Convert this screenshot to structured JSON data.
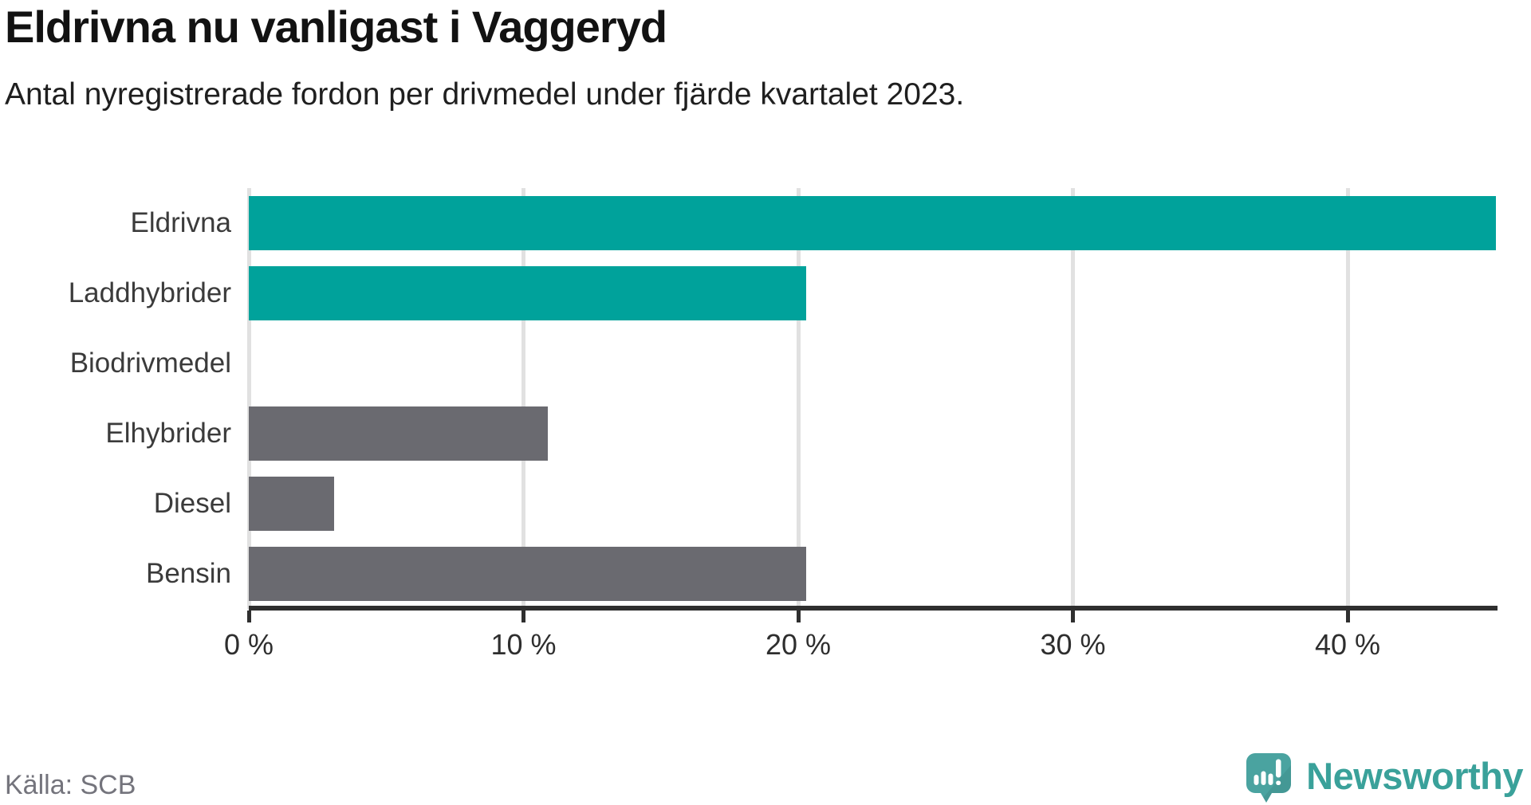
{
  "header": {
    "title": "Eldrivna nu vanligast i Vaggeryd",
    "subtitle": "Antal nyregistrerade fordon per drivmedel under fjärde kvartalet 2023."
  },
  "chart_data": {
    "type": "bar",
    "orientation": "horizontal",
    "title": "Eldrivna nu vanligast i Vaggeryd",
    "xlabel": "",
    "ylabel": "",
    "unit": "%",
    "categories": [
      "Eldrivna",
      "Laddhybrider",
      "Biodrivmedel",
      "Elhybrider",
      "Diesel",
      "Bensin"
    ],
    "values": [
      45.4,
      20.3,
      0,
      10.9,
      3.1,
      20.3
    ],
    "bar_colors": [
      "#00a29b",
      "#00a29b",
      "#00a29b",
      "#6a6a70",
      "#6a6a70",
      "#6a6a70"
    ],
    "xlim": [
      0,
      45.4
    ],
    "x_ticks": [
      0,
      10,
      20,
      30,
      40
    ],
    "x_tick_labels": [
      "0 %",
      "10 %",
      "20 %",
      "30 %",
      "40 %"
    ],
    "grid": "vertical",
    "legend": "none"
  },
  "footer": {
    "source_label": "Källa: SCB",
    "logo_text": "Newsworthy"
  },
  "colors": {
    "accent_teal": "#00a29b",
    "neutral_gray": "#6a6a70",
    "gridline": "#e1e1e1",
    "axis": "#2f2f2f",
    "logo_teal": "#3aa19a",
    "logo_icon": "#4aa3a0"
  }
}
